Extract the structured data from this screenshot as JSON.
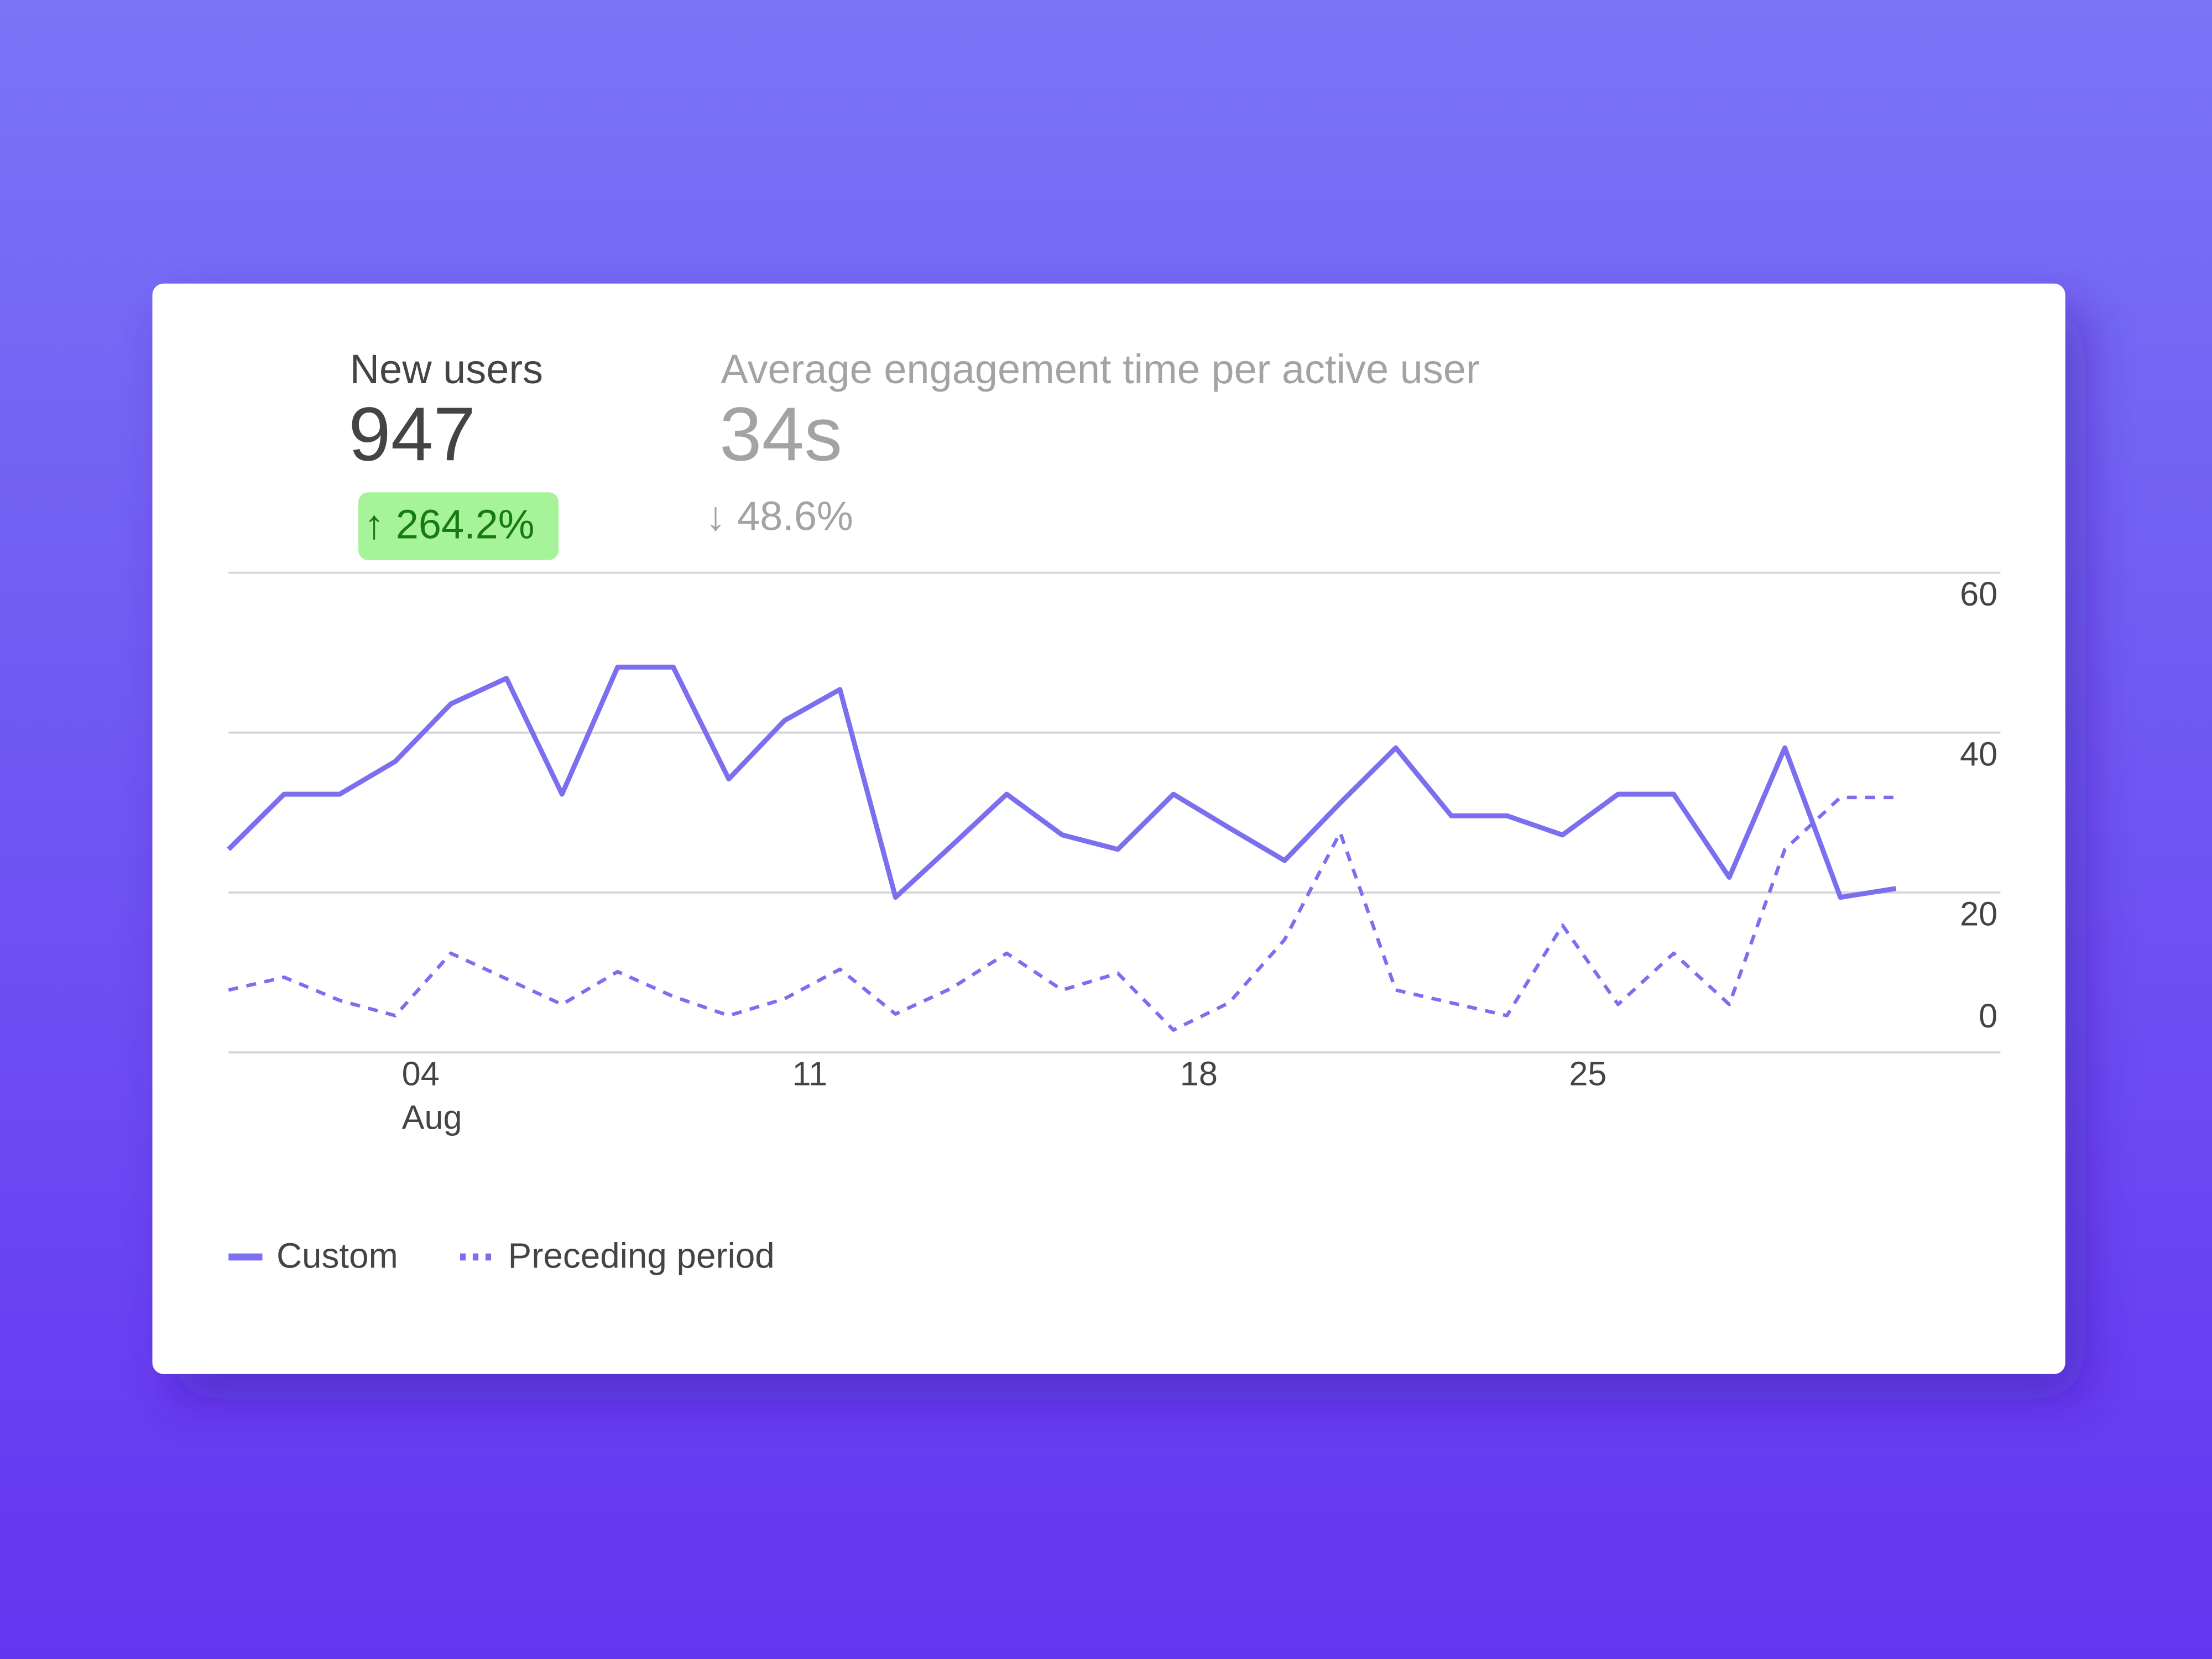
{
  "metrics": [
    {
      "label": "New users",
      "value": "947",
      "change": "↑ 264.2%"
    },
    {
      "label": "Average engagement time per active user",
      "value": "34s",
      "change": "↓ 48.6%"
    }
  ],
  "chart_data": {
    "type": "line",
    "categories": [
      null,
      null,
      null,
      "04",
      null,
      null,
      null,
      null,
      null,
      null,
      "11",
      null,
      null,
      null,
      null,
      null,
      null,
      "18",
      null,
      null,
      null,
      null,
      null,
      null,
      "25",
      null,
      null,
      null,
      null,
      null,
      null
    ],
    "x_sublabel": "Aug",
    "series": [
      {
        "name": "Custom",
        "color": "#7b6ff0",
        "style": "solid",
        "values": [
          25.4,
          32.3,
          32.3,
          36.4,
          43.6,
          46.8,
          32.3,
          48.2,
          48.2,
          34.2,
          41.5,
          45.4,
          19.4,
          25.8,
          32.3,
          27.2,
          25.4,
          32.3,
          28.1,
          24,
          31.2,
          38.1,
          29.6,
          29.6,
          27.2,
          32.3,
          32.3,
          21.9,
          38.1,
          19.4,
          20.5
        ]
      },
      {
        "name": "Preceding period",
        "color": "#7b6ff0",
        "style": "dashed",
        "values": [
          7.8,
          9.4,
          6.5,
          4.6,
          12.4,
          9.2,
          6,
          10.1,
          7,
          4.6,
          6.7,
          10.4,
          4.8,
          8,
          12.4,
          7.8,
          9.9,
          2.8,
          6.2,
          14.1,
          27.5,
          7.8,
          6.2,
          4.6,
          15.9,
          6,
          12.4,
          6,
          25.4,
          31.9,
          31.9
        ]
      }
    ],
    "ylim": [
      0,
      60
    ],
    "yticks": [
      0,
      20,
      40,
      60
    ],
    "grid": true
  }
}
